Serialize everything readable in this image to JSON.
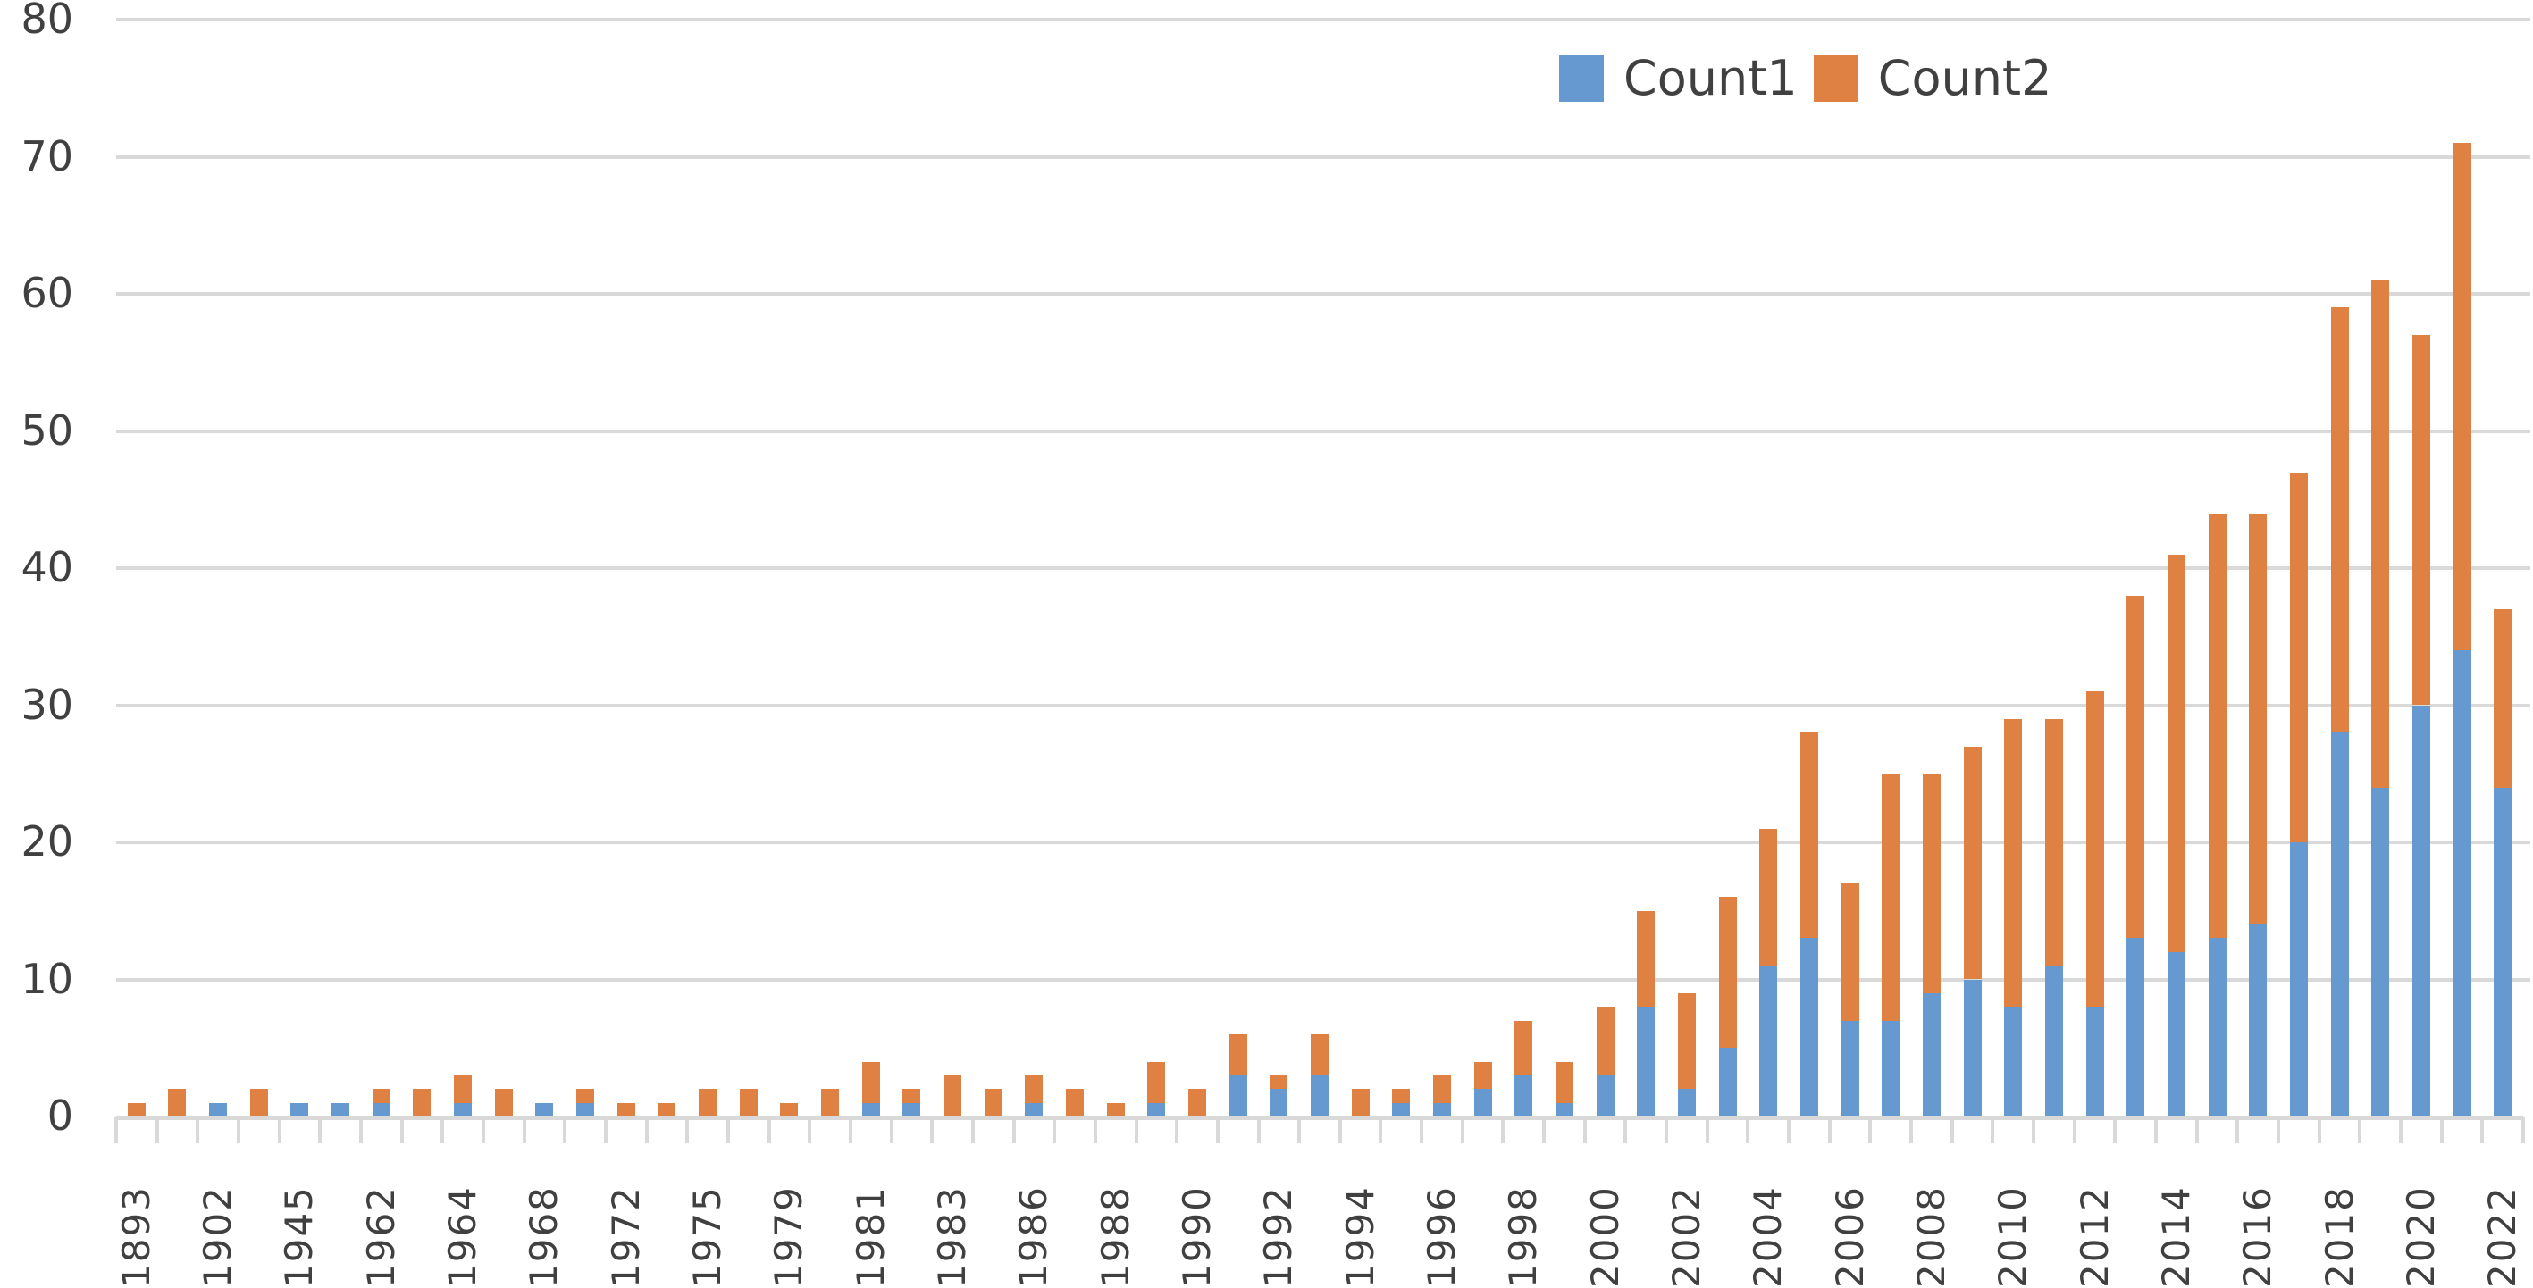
{
  "chart_data": {
    "type": "bar",
    "stacked": true,
    "title": "",
    "xlabel": "",
    "ylabel": "",
    "ylim": [
      0,
      80
    ],
    "yticks": [
      0,
      10,
      20,
      30,
      40,
      50,
      60,
      70,
      80
    ],
    "grid": true,
    "legend_position": "top-right-inside",
    "categories": [
      "1893",
      "",
      "1902",
      "",
      "1945",
      "",
      "1962",
      "",
      "1964",
      "",
      "1968",
      "",
      "1972",
      "",
      "1975",
      "",
      "1979",
      "",
      "1981",
      "",
      "1983",
      "",
      "1986",
      "",
      "1988",
      "",
      "1990",
      "",
      "1992",
      "",
      "1994",
      "",
      "1996",
      "",
      "1998",
      "",
      "2000",
      "",
      "2002",
      "",
      "2004",
      "",
      "2006",
      "",
      "2008",
      "",
      "2010",
      "",
      "2012",
      "",
      "2014",
      "",
      "2016",
      "",
      "2018",
      "",
      "2020",
      "",
      "2022"
    ],
    "series": [
      {
        "name": "Count1",
        "color": "#6699cf",
        "values": [
          0,
          0,
          1,
          0,
          1,
          1,
          1,
          0,
          1,
          0,
          1,
          1,
          0,
          0,
          0,
          0,
          0,
          0,
          1,
          1,
          0,
          0,
          1,
          0,
          0,
          1,
          0,
          3,
          2,
          3,
          0,
          1,
          1,
          2,
          3,
          1,
          3,
          8,
          2,
          5,
          11,
          13,
          7,
          7,
          9,
          10,
          8,
          11,
          8,
          13,
          12,
          13,
          14,
          20,
          28,
          24,
          30,
          34,
          24
        ]
      },
      {
        "name": "Count2",
        "color": "#df8143",
        "values": [
          1,
          2,
          0,
          2,
          0,
          0,
          1,
          2,
          2,
          2,
          0,
          1,
          1,
          1,
          2,
          2,
          1,
          2,
          3,
          1,
          3,
          2,
          2,
          2,
          1,
          3,
          2,
          3,
          1,
          3,
          2,
          1,
          2,
          2,
          4,
          3,
          5,
          7,
          7,
          11,
          10,
          15,
          10,
          18,
          16,
          17,
          21,
          18,
          23,
          25,
          29,
          31,
          30,
          27,
          31,
          37,
          27,
          37,
          13
        ]
      }
    ],
    "totals": [
      1,
      2,
      1,
      2,
      1,
      1,
      2,
      2,
      3,
      2,
      1,
      2,
      1,
      1,
      2,
      2,
      1,
      2,
      4,
      2,
      3,
      2,
      3,
      2,
      1,
      4,
      2,
      6,
      3,
      6,
      2,
      2,
      3,
      4,
      7,
      4,
      8,
      15,
      9,
      16,
      21,
      28,
      17,
      25,
      25,
      27,
      29,
      29,
      31,
      38,
      41,
      44,
      44,
      47,
      59,
      61,
      57,
      71,
      37
    ]
  },
  "legend": {
    "items": [
      {
        "label": "Count1",
        "color": "#6699cf"
      },
      {
        "label": "Count2",
        "color": "#df8143"
      }
    ]
  },
  "colors": {
    "grid": "#d9d9d9",
    "text": "#404040",
    "background": "#ffffff"
  }
}
